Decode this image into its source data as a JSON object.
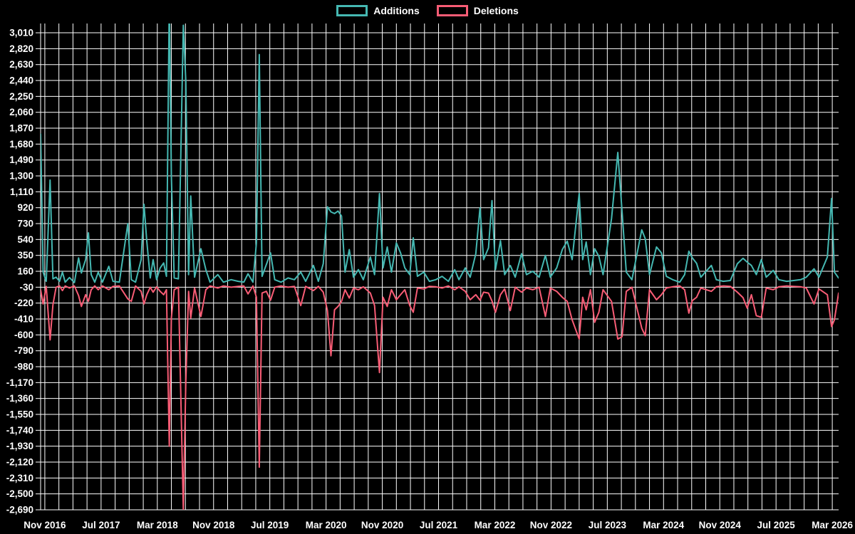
{
  "legend": {
    "items": [
      {
        "label": "Additions",
        "color": "#45b8b2"
      },
      {
        "label": "Deletions",
        "color": "#f85c75"
      }
    ]
  },
  "chart_data": {
    "type": "line",
    "title": "",
    "xlabel": "",
    "ylabel": "",
    "grid": true,
    "legend_position": "top",
    "background_color": "#000000",
    "grid_color": "#ffffff",
    "text_color": "#ffffff",
    "series": [
      {
        "name": "Additions",
        "color": "#45b8b2"
      },
      {
        "name": "Deletions",
        "color": "#f85c75"
      }
    ],
    "y_axis": {
      "tick_step": 190,
      "range": [
        -2690,
        3121
      ],
      "tick_labels": [
        "3,010",
        "2,820",
        "2,630",
        "2,440",
        "2,250",
        "2,060",
        "1,870",
        "1,680",
        "1,490",
        "1,300",
        "1,110",
        "920",
        "730",
        "540",
        "350",
        "160",
        "-30",
        "-220",
        "-410",
        "-600",
        "-790",
        "-980",
        "-1,170",
        "-1,360",
        "-1,550",
        "-1,740",
        "-1,930",
        "-2,120",
        "-2,310",
        "-2,500",
        "-2,690"
      ]
    },
    "x_axis": {
      "tick_labels": [
        "Nov 2016",
        "Jul 2017",
        "Mar 2018",
        "Nov 2018",
        "Jul 2019",
        "Mar 2020",
        "Nov 2020",
        "Jul 2021",
        "Mar 2022",
        "Nov 2022",
        "Jul 2023",
        "Mar 2024",
        "Nov 2024",
        "Jul 2025",
        "Mar 2026"
      ],
      "label_every_months": 8,
      "grid_every_months": 2,
      "domain_months": [
        -0.6,
        112.9
      ]
    },
    "points_month_additions_deletions": [
      [
        -0.6,
        1800,
        -60
      ],
      [
        -0.25,
        150,
        -230
      ],
      [
        0.2,
        40,
        -20
      ],
      [
        0.75,
        1250,
        -660
      ],
      [
        1.15,
        70,
        -240
      ],
      [
        1.6,
        90,
        -30
      ],
      [
        2.1,
        40,
        -15
      ],
      [
        2.5,
        150,
        -70
      ],
      [
        2.9,
        30,
        -15
      ],
      [
        3.5,
        85,
        -40
      ],
      [
        4.2,
        25,
        -15
      ],
      [
        4.8,
        320,
        -130
      ],
      [
        5.2,
        140,
        -260
      ],
      [
        5.8,
        300,
        -120
      ],
      [
        6.2,
        620,
        -200
      ],
      [
        6.6,
        120,
        -60
      ],
      [
        7.1,
        30,
        -15
      ],
      [
        7.6,
        150,
        -60
      ],
      [
        8.2,
        30,
        -15
      ],
      [
        9.1,
        220,
        -60
      ],
      [
        9.7,
        40,
        -20
      ],
      [
        10.6,
        30,
        -15
      ],
      [
        11.8,
        730,
        -170
      ],
      [
        12.3,
        60,
        -200
      ],
      [
        12.9,
        30,
        -15
      ],
      [
        13.7,
        300,
        -80
      ],
      [
        14.1,
        960,
        -230
      ],
      [
        14.5,
        520,
        -120
      ],
      [
        15.0,
        80,
        -30
      ],
      [
        15.4,
        300,
        -90
      ],
      [
        15.9,
        60,
        -25
      ],
      [
        16.4,
        200,
        -80
      ],
      [
        16.9,
        260,
        -120
      ],
      [
        17.3,
        100,
        -60
      ],
      [
        17.7,
        3400,
        -1930
      ],
      [
        18.0,
        1300,
        -400
      ],
      [
        18.4,
        80,
        -60
      ],
      [
        19.0,
        70,
        -30
      ],
      [
        19.7,
        3100,
        -2690
      ],
      [
        20.05,
        2430,
        -1160
      ],
      [
        20.45,
        120,
        -80
      ],
      [
        20.75,
        1060,
        -400
      ],
      [
        21.3,
        90,
        -40
      ],
      [
        22.2,
        430,
        -380
      ],
      [
        22.9,
        180,
        -60
      ],
      [
        23.5,
        30,
        -15
      ],
      [
        24.6,
        120,
        -40
      ],
      [
        25.4,
        30,
        -15
      ],
      [
        26.5,
        60,
        -30
      ],
      [
        27.5,
        40,
        -20
      ],
      [
        28.3,
        30,
        -15
      ],
      [
        28.9,
        130,
        -110
      ],
      [
        29.6,
        30,
        -15
      ],
      [
        30.1,
        500,
        -150
      ],
      [
        30.5,
        2750,
        -2180
      ],
      [
        30.9,
        100,
        -100
      ],
      [
        31.5,
        240,
        -80
      ],
      [
        32.1,
        380,
        -185
      ],
      [
        32.7,
        60,
        -30
      ],
      [
        33.6,
        30,
        -15
      ],
      [
        34.6,
        80,
        -30
      ],
      [
        35.5,
        60,
        -20
      ],
      [
        36.4,
        150,
        -250
      ],
      [
        37.1,
        40,
        -20
      ],
      [
        38.2,
        230,
        -70
      ],
      [
        38.9,
        40,
        -20
      ],
      [
        39.6,
        250,
        -90
      ],
      [
        40.2,
        930,
        -310
      ],
      [
        40.7,
        870,
        -850
      ],
      [
        41.2,
        850,
        -300
      ],
      [
        41.7,
        880,
        -260
      ],
      [
        42.2,
        820,
        -200
      ],
      [
        42.7,
        150,
        -60
      ],
      [
        43.3,
        420,
        -160
      ],
      [
        43.9,
        90,
        -40
      ],
      [
        44.6,
        180,
        -60
      ],
      [
        45.3,
        60,
        -25
      ],
      [
        46.3,
        330,
        -100
      ],
      [
        46.9,
        120,
        -250
      ],
      [
        47.6,
        1090,
        -1050
      ],
      [
        48.1,
        200,
        -150
      ],
      [
        48.7,
        450,
        -260
      ],
      [
        49.3,
        150,
        -60
      ],
      [
        50.0,
        500,
        -180
      ],
      [
        50.6,
        380,
        -120
      ],
      [
        51.2,
        200,
        -60
      ],
      [
        51.9,
        120,
        -250
      ],
      [
        52.4,
        560,
        -330
      ],
      [
        53.0,
        100,
        -40
      ],
      [
        53.9,
        150,
        -50
      ],
      [
        54.7,
        40,
        -20
      ],
      [
        55.6,
        60,
        -25
      ],
      [
        56.5,
        100,
        -40
      ],
      [
        57.4,
        40,
        -15
      ],
      [
        58.3,
        180,
        -60
      ],
      [
        58.9,
        60,
        -25
      ],
      [
        59.8,
        200,
        -80
      ],
      [
        60.5,
        90,
        -180
      ],
      [
        61.3,
        370,
        -120
      ],
      [
        61.9,
        920,
        -185
      ],
      [
        62.4,
        300,
        -90
      ],
      [
        63.1,
        440,
        -100
      ],
      [
        63.6,
        1005,
        -195
      ],
      [
        64.1,
        180,
        -330
      ],
      [
        64.8,
        525,
        -120
      ],
      [
        65.4,
        120,
        -50
      ],
      [
        66.2,
        230,
        -310
      ],
      [
        66.9,
        90,
        -30
      ],
      [
        67.8,
        370,
        -90
      ],
      [
        68.5,
        120,
        -40
      ],
      [
        69.4,
        160,
        -60
      ],
      [
        70.3,
        90,
        -30
      ],
      [
        71.2,
        350,
        -380
      ],
      [
        71.9,
        90,
        -40
      ],
      [
        72.8,
        200,
        -80
      ],
      [
        73.6,
        420,
        -150
      ],
      [
        74.3,
        520,
        -200
      ],
      [
        75.0,
        300,
        -420
      ],
      [
        76.0,
        1090,
        -650
      ],
      [
        76.5,
        300,
        -150
      ],
      [
        77.0,
        510,
        -300
      ],
      [
        77.6,
        120,
        -60
      ],
      [
        78.2,
        430,
        -450
      ],
      [
        78.8,
        340,
        -330
      ],
      [
        79.4,
        120,
        -60
      ],
      [
        80.6,
        790,
        -200
      ],
      [
        81.5,
        1580,
        -650
      ],
      [
        82.1,
        870,
        -620
      ],
      [
        82.7,
        150,
        -80
      ],
      [
        83.5,
        60,
        -30
      ],
      [
        84.9,
        655,
        -520
      ],
      [
        85.4,
        550,
        -610
      ],
      [
        86.0,
        120,
        -60
      ],
      [
        87.0,
        450,
        -180
      ],
      [
        87.7,
        380,
        -120
      ],
      [
        88.4,
        100,
        -40
      ],
      [
        89.3,
        60,
        -25
      ],
      [
        90.3,
        30,
        -15
      ],
      [
        91.0,
        120,
        -60
      ],
      [
        91.6,
        400,
        -340
      ],
      [
        92.1,
        320,
        -190
      ],
      [
        92.7,
        255,
        -150
      ],
      [
        93.3,
        90,
        -40
      ],
      [
        94.8,
        230,
        -80
      ],
      [
        95.5,
        60,
        -25
      ],
      [
        96.5,
        40,
        -15
      ],
      [
        97.5,
        50,
        -20
      ],
      [
        98.5,
        250,
        -90
      ],
      [
        99.3,
        315,
        -155
      ],
      [
        99.9,
        270,
        -280
      ],
      [
        100.5,
        230,
        -120
      ],
      [
        101.2,
        120,
        -370
      ],
      [
        101.9,
        300,
        -390
      ],
      [
        102.6,
        90,
        -40
      ],
      [
        103.6,
        170,
        -60
      ],
      [
        104.4,
        60,
        -25
      ],
      [
        105.5,
        40,
        -15
      ],
      [
        106.5,
        50,
        -20
      ],
      [
        107.5,
        60,
        -25
      ],
      [
        108.3,
        90,
        -40
      ],
      [
        109.4,
        190,
        -230
      ],
      [
        110.1,
        90,
        -50
      ],
      [
        111.3,
        330,
        -120
      ],
      [
        111.9,
        1030,
        -500
      ],
      [
        112.3,
        150,
        -420
      ],
      [
        112.9,
        80,
        -100
      ]
    ]
  }
}
